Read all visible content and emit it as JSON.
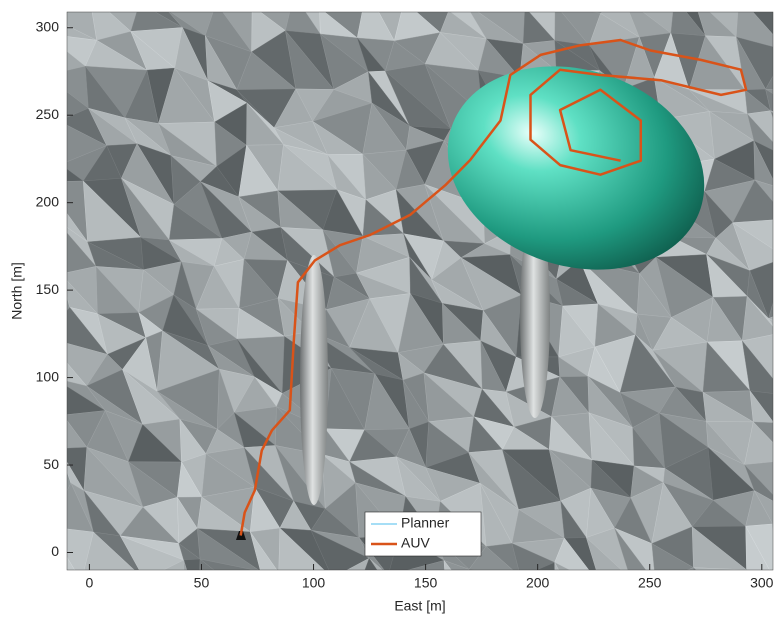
{
  "chart_data": {
    "type": "line",
    "xlabel": "East [m]",
    "ylabel": "North [m]",
    "x": [
      67.5,
      69.3,
      73.8,
      76.9,
      81.4,
      89.4,
      91.2,
      93,
      100.6,
      111.8,
      125.2,
      143.1,
      158.8,
      169.9,
      183.4,
      187.8,
      201.3,
      219.2,
      237,
      250.4,
      272.8,
      290.7,
      293,
      281.8,
      255,
      228,
      210,
      196.8,
      196.8,
      210,
      228,
      246,
      246,
      228,
      210,
      214.7,
      237
    ],
    "series": [
      {
        "name": "Planner",
        "color": "#4dbeee",
        "values": [
          9.7,
          22.9,
          35.5,
          58.4,
          69.8,
          81.3,
          121,
          154.5,
          167,
          175.7,
          181.5,
          193,
          210,
          224.4,
          247,
          273,
          284.5,
          290,
          293,
          287,
          281.6,
          276,
          264.5,
          261.6,
          270,
          273,
          276,
          261.6,
          236,
          221.5,
          216,
          224,
          247,
          264.5,
          253,
          230,
          224
        ]
      },
      {
        "name": "AUV",
        "color": "#d95319",
        "values": [
          9.7,
          22.9,
          35.5,
          58.4,
          69.8,
          81.3,
          121,
          154.5,
          167,
          175.7,
          181.5,
          193,
          210,
          224.4,
          247,
          273,
          284.5,
          290,
          293,
          287,
          281.6,
          276,
          264.5,
          261.6,
          270,
          273,
          276,
          261.6,
          236,
          221.5,
          216,
          224,
          247,
          264.5,
          253,
          230,
          224
        ]
      }
    ],
    "xlim": [
      -10,
      305
    ],
    "ylim": [
      -10,
      309
    ],
    "xticks": [
      0,
      50,
      100,
      150,
      200,
      250,
      300
    ],
    "yticks": [
      0,
      50,
      100,
      150,
      200,
      250,
      300
    ],
    "legend": "bottom"
  }
}
